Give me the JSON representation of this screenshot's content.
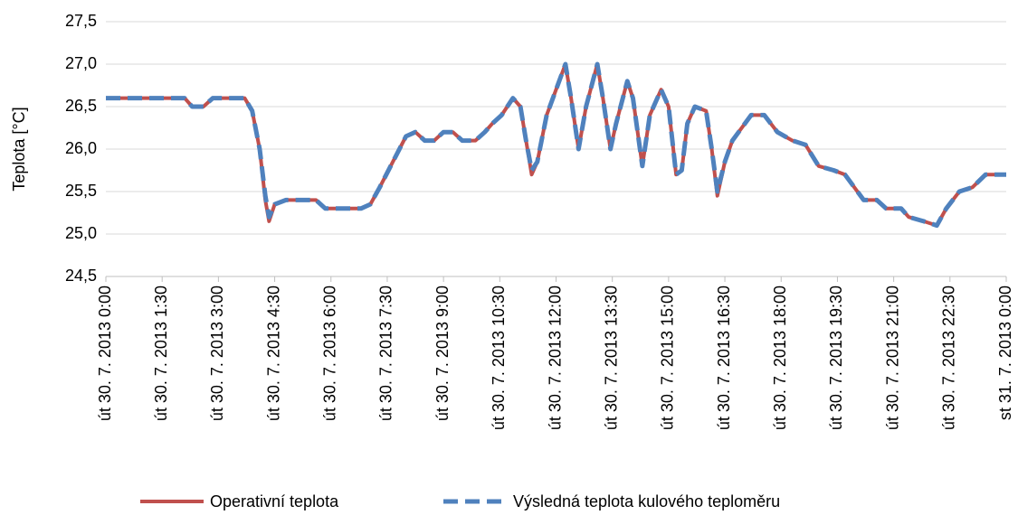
{
  "chart_data": {
    "type": "line",
    "ylabel": "Teplota [°C]",
    "xlim": [
      0,
      24
    ],
    "xticks": [
      {
        "value": 0,
        "label": "út 30. 7. 2013 0:00"
      },
      {
        "value": 1.5,
        "label": "út 30. 7. 2013 1:30"
      },
      {
        "value": 3,
        "label": "út 30. 7. 2013 3:00"
      },
      {
        "value": 4.5,
        "label": "út 30. 7. 2013 4:30"
      },
      {
        "value": 6,
        "label": "út 30. 7. 2013 6:00"
      },
      {
        "value": 7.5,
        "label": "út 30. 7. 2013 7:30"
      },
      {
        "value": 9,
        "label": "út 30. 7. 2013 9:00"
      },
      {
        "value": 10.5,
        "label": "út 30. 7. 2013 10:30"
      },
      {
        "value": 12,
        "label": "út 30. 7. 2013 12:00"
      },
      {
        "value": 13.5,
        "label": "út 30. 7. 2013 13:30"
      },
      {
        "value": 15,
        "label": "út 30. 7. 2013 15:00"
      },
      {
        "value": 16.5,
        "label": "út 30. 7. 2013 16:30"
      },
      {
        "value": 18,
        "label": "út 30. 7. 2013 18:00"
      },
      {
        "value": 19.5,
        "label": "út 30. 7. 2013 19:30"
      },
      {
        "value": 21,
        "label": "út 30. 7. 2013 21:00"
      },
      {
        "value": 22.5,
        "label": "út 30. 7. 2013 22:30"
      },
      {
        "value": 24,
        "label": "st 31. 7. 2013 0:00"
      }
    ],
    "ylim": [
      24.5,
      27.5
    ],
    "yticks": [
      {
        "value": 24.5,
        "label": "24,5"
      },
      {
        "value": 25,
        "label": "25,0"
      },
      {
        "value": 25.5,
        "label": "25,5"
      },
      {
        "value": 26,
        "label": "26,0"
      },
      {
        "value": 26.5,
        "label": "26,5"
      },
      {
        "value": 27,
        "label": "27,0"
      },
      {
        "value": 27.5,
        "label": "27,5"
      }
    ],
    "grid": true,
    "legend": "bottom",
    "x": [
      0,
      1,
      2.1,
      2.3,
      2.6,
      2.85,
      3.7,
      3.9,
      4.1,
      4.25,
      4.35,
      4.5,
      4.8,
      5.6,
      5.85,
      6.8,
      7.05,
      7.3,
      7.65,
      8.0,
      8.25,
      8.5,
      8.75,
      9.0,
      9.25,
      9.5,
      9.85,
      10.1,
      10.3,
      10.55,
      10.85,
      11.05,
      11.2,
      11.35,
      11.5,
      11.75,
      12.0,
      12.25,
      12.4,
      12.6,
      12.8,
      13.1,
      13.25,
      13.45,
      13.6,
      13.9,
      14.05,
      14.3,
      14.5,
      14.8,
      15.0,
      15.2,
      15.35,
      15.5,
      15.7,
      16.0,
      16.15,
      16.3,
      16.5,
      16.7,
      17.2,
      17.55,
      17.9,
      18.3,
      18.65,
      19.0,
      19.4,
      19.7,
      20.2,
      20.55,
      20.8,
      21.2,
      21.4,
      21.8,
      22.15,
      22.4,
      22.75,
      23.1,
      23.45,
      24.0
    ],
    "series": [
      {
        "name": "Operativní teplota",
        "color": "#c0504d",
        "dashed": false,
        "values": [
          26.6,
          26.6,
          26.6,
          26.5,
          26.5,
          26.6,
          26.6,
          26.45,
          26.0,
          25.4,
          25.15,
          25.35,
          25.4,
          25.4,
          25.3,
          25.3,
          25.35,
          25.55,
          25.85,
          26.15,
          26.2,
          26.1,
          26.1,
          26.2,
          26.2,
          26.1,
          26.1,
          26.2,
          26.3,
          26.4,
          26.6,
          26.5,
          26.1,
          25.7,
          25.85,
          26.4,
          26.7,
          27.0,
          26.6,
          26.0,
          26.5,
          27.0,
          26.6,
          26.0,
          26.3,
          26.8,
          26.6,
          25.8,
          26.4,
          26.7,
          26.5,
          25.7,
          25.75,
          26.3,
          26.5,
          26.45,
          26.0,
          25.45,
          25.85,
          26.1,
          26.4,
          26.4,
          26.2,
          26.1,
          26.05,
          25.8,
          25.75,
          25.7,
          25.4,
          25.4,
          25.3,
          25.3,
          25.2,
          25.15,
          25.1,
          25.3,
          25.5,
          25.55,
          25.7,
          25.7
        ]
      },
      {
        "name": "Výsledná teplota kulového teploměru",
        "color": "#4f81bd",
        "dashed": true,
        "values": [
          26.6,
          26.6,
          26.6,
          26.5,
          26.5,
          26.6,
          26.6,
          26.45,
          26.0,
          25.45,
          25.2,
          25.35,
          25.4,
          25.4,
          25.3,
          25.3,
          25.35,
          25.55,
          25.85,
          26.15,
          26.2,
          26.1,
          26.1,
          26.2,
          26.2,
          26.1,
          26.1,
          26.2,
          26.3,
          26.4,
          26.6,
          26.5,
          26.1,
          25.75,
          25.85,
          26.4,
          26.7,
          27.0,
          26.6,
          26.0,
          26.5,
          27.0,
          26.6,
          26.0,
          26.3,
          26.8,
          26.6,
          25.8,
          26.4,
          26.7,
          26.5,
          25.7,
          25.75,
          26.3,
          26.5,
          26.45,
          26.0,
          25.5,
          25.85,
          26.1,
          26.4,
          26.4,
          26.2,
          26.1,
          26.05,
          25.8,
          25.75,
          25.7,
          25.4,
          25.4,
          25.3,
          25.3,
          25.2,
          25.15,
          25.1,
          25.3,
          25.5,
          25.55,
          25.7,
          25.7
        ]
      }
    ]
  }
}
